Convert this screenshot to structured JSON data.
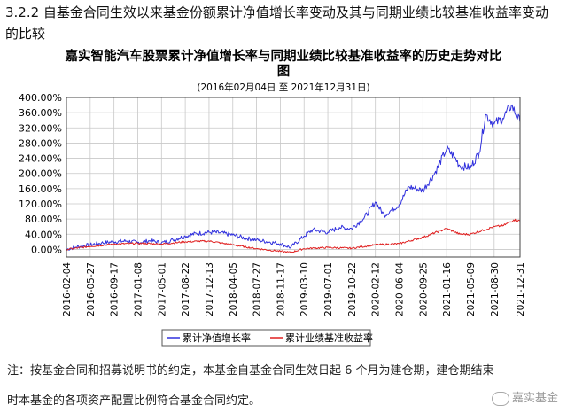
{
  "section": {
    "title": "3.2.2 自基金合同生效以来基金份额累计净值增长率变动及其与同期业绩比较基准收益率变动的比较"
  },
  "chart_data": {
    "type": "line",
    "title_line1": "嘉实智能汽车股票累计净值增长率与同期业绩比较基准收益率的历史走势对比",
    "title_line2": "图",
    "subtitle": "(2016年02月04日 至 2021年12月31日)",
    "ylim": [
      -20,
      400
    ],
    "yticks": [
      "400.00%",
      "360.00%",
      "320.00%",
      "280.00%",
      "240.00%",
      "200.00%",
      "160.00%",
      "120.00%",
      "80.00%",
      "40.00%",
      "0.00%"
    ],
    "ytick_values": [
      400,
      360,
      320,
      280,
      240,
      200,
      160,
      120,
      80,
      40,
      0
    ],
    "xlim": [
      "2016-02-04",
      "2021-12-31"
    ],
    "xticks": [
      "2016-02-04",
      "2016-05-27",
      "2016-09-17",
      "2017-01-08",
      "2017-05-01",
      "2017-08-22",
      "2017-12-13",
      "2018-04-05",
      "2018-07-27",
      "2018-11-17",
      "2019-03-10",
      "2019-07-01",
      "2019-10-22",
      "2020-02-12",
      "2020-06-04",
      "2020-09-25",
      "2021-01-16",
      "2021-05-09",
      "2021-08-30",
      "2021-12-31"
    ],
    "grid": true,
    "legend_position": "bottom",
    "series": [
      {
        "name": "累计净值增长率",
        "color": "#3030dd",
        "points": [
          [
            "2016-02-04",
            0
          ],
          [
            "2016-03-20",
            6
          ],
          [
            "2016-05-27",
            12
          ],
          [
            "2016-07-20",
            17
          ],
          [
            "2016-09-17",
            20
          ],
          [
            "2016-11-15",
            22
          ],
          [
            "2017-01-08",
            18
          ],
          [
            "2017-03-10",
            23
          ],
          [
            "2017-05-01",
            17
          ],
          [
            "2017-06-25",
            25
          ],
          [
            "2017-08-22",
            35
          ],
          [
            "2017-10-15",
            42
          ],
          [
            "2017-12-13",
            45
          ],
          [
            "2018-02-01",
            44
          ],
          [
            "2018-04-05",
            38
          ],
          [
            "2018-06-01",
            30
          ],
          [
            "2018-07-27",
            25
          ],
          [
            "2018-09-20",
            20
          ],
          [
            "2018-11-17",
            15
          ],
          [
            "2019-01-05",
            5
          ],
          [
            "2019-03-10",
            35
          ],
          [
            "2019-04-20",
            52
          ],
          [
            "2019-07-01",
            45
          ],
          [
            "2019-08-25",
            58
          ],
          [
            "2019-10-22",
            55
          ],
          [
            "2019-12-20",
            82
          ],
          [
            "2020-02-12",
            125
          ],
          [
            "2020-03-25",
            90
          ],
          [
            "2020-06-04",
            118
          ],
          [
            "2020-07-20",
            165
          ],
          [
            "2020-09-25",
            155
          ],
          [
            "2020-11-20",
            200
          ],
          [
            "2021-01-16",
            265
          ],
          [
            "2021-02-20",
            245
          ],
          [
            "2021-03-20",
            220
          ],
          [
            "2021-05-09",
            215
          ],
          [
            "2021-06-20",
            255
          ],
          [
            "2021-07-20",
            355
          ],
          [
            "2021-08-30",
            330
          ],
          [
            "2021-10-10",
            345
          ],
          [
            "2021-11-20",
            380
          ],
          [
            "2021-12-31",
            335
          ]
        ]
      },
      {
        "name": "累计业绩基准收益率",
        "color": "#e02020",
        "points": [
          [
            "2016-02-04",
            0
          ],
          [
            "2016-05-27",
            8
          ],
          [
            "2016-09-17",
            14
          ],
          [
            "2017-01-08",
            16
          ],
          [
            "2017-05-01",
            14
          ],
          [
            "2017-08-22",
            20
          ],
          [
            "2017-12-13",
            22
          ],
          [
            "2018-04-05",
            12
          ],
          [
            "2018-07-27",
            2
          ],
          [
            "2018-11-17",
            -5
          ],
          [
            "2019-01-05",
            -8
          ],
          [
            "2019-03-10",
            2
          ],
          [
            "2019-07-01",
            5
          ],
          [
            "2019-10-22",
            3
          ],
          [
            "2020-02-12",
            12
          ],
          [
            "2020-06-04",
            15
          ],
          [
            "2020-09-25",
            32
          ],
          [
            "2021-01-16",
            55
          ],
          [
            "2021-03-20",
            40
          ],
          [
            "2021-05-09",
            40
          ],
          [
            "2021-08-30",
            60
          ],
          [
            "2021-10-10",
            62
          ],
          [
            "2021-12-01",
            78
          ],
          [
            "2021-12-31",
            75
          ]
        ]
      }
    ]
  },
  "notes": {
    "line1": "注：按基金合同和招募说明书的约定，本基金自基金合同生效日起 6 个月为建仓期，建仓期结束",
    "line2": "时本基金的各项资产配置比例符合基金合同约定。"
  },
  "watermark": {
    "text": "嘉实基金"
  }
}
